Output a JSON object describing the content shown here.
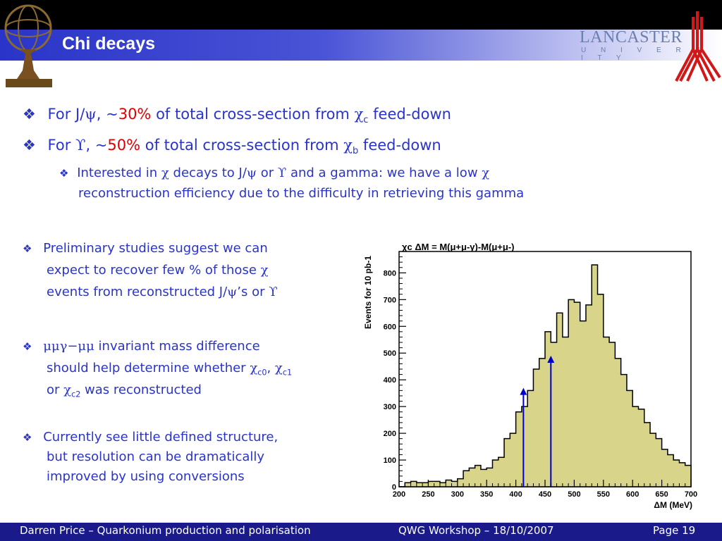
{
  "slide": {
    "title": "Chi decays",
    "logo_text": "LANCASTER",
    "logo_subtext": "U N I V E R S I T Y",
    "bullets": {
      "b1": {
        "pre": "For J/",
        "psi": "ψ",
        "mid": ", ~",
        "pct": "30%",
        "post": " of total cross-section from ",
        "chi": "χ",
        "sub": "c",
        "end": " feed-down"
      },
      "b2": {
        "pre": "For ",
        "ups": "ϒ",
        "mid": ", ~",
        "pct": "50%",
        "post": " of total cross-section from ",
        "chi": "χ",
        "sub": "b",
        "end": " feed-down"
      },
      "b3": {
        "line1a": "Interested in ",
        "chi": "χ",
        "line1b": " decays to J/",
        "psi": "ψ",
        "line1c": " or ",
        "ups": "ϒ",
        "line1d": " and a gamma: we have a low ",
        "chi2": "χ",
        "line2": "reconstruction efficiency due to the difficulty in retrieving this gamma"
      },
      "b4": {
        "line1": "Preliminary studies suggest we can",
        "line2a": "expect to recover few % of those ",
        "chi": "χ",
        "line3a": "events from reconstructed J/",
        "psi": "ψ",
        "line3b": "’s or ",
        "ups": "ϒ"
      },
      "b5": {
        "sym": "μμγ−μμ",
        "line1": " invariant mass difference",
        "line2a": "should help determine whether ",
        "chi": "χ",
        "s0": "c0",
        "comma": ", ",
        "chi1": "χ",
        "s1": "c1",
        "line3a": "or ",
        "chi2": "χ",
        "s2": "c2",
        "line3b": " was reconstructed"
      },
      "b6": {
        "line1": "Currently see little defined structure,",
        "line2": "but resolution can be dramatically",
        "line3": "improved by using conversions"
      }
    },
    "footer": {
      "left": "Darren Price – Quarkonium production and polarisation",
      "mid": "QWG Workshop – 18/10/2007",
      "right": "Page 19"
    }
  },
  "chart_data": {
    "type": "histogram",
    "title": "χc ΔM = M(μ+μ-γ)-M(μ+μ-)",
    "xlabel": "ΔM (MeV)",
    "ylabel": "Events for 10 pb-1",
    "xlim": [
      200,
      700
    ],
    "ylim": [
      0,
      880
    ],
    "xticks": [
      200,
      250,
      300,
      350,
      400,
      450,
      500,
      550,
      600,
      650,
      700
    ],
    "yticks": [
      0,
      100,
      200,
      300,
      400,
      500,
      600,
      700,
      800
    ],
    "bin_width": 10,
    "bin_edges_start": 200,
    "values": [
      0,
      15,
      20,
      15,
      15,
      20,
      20,
      15,
      25,
      20,
      30,
      60,
      70,
      80,
      65,
      70,
      100,
      110,
      180,
      200,
      280,
      300,
      360,
      440,
      480,
      580,
      540,
      650,
      560,
      700,
      690,
      620,
      680,
      830,
      720,
      560,
      540,
      480,
      420,
      360,
      300,
      290,
      240,
      200,
      180,
      140,
      120,
      100,
      90,
      80,
      60
    ],
    "arrows": [
      {
        "x": 413,
        "y": 370
      },
      {
        "x": 460,
        "y": 490
      }
    ],
    "fill_color": "#d8d48a",
    "line_color": "#000000",
    "arrow_color": "#0000cc"
  },
  "colors": {
    "text": "#2a34c8",
    "highlight": "#e00000",
    "footer_bg": "#1a1a8a"
  }
}
